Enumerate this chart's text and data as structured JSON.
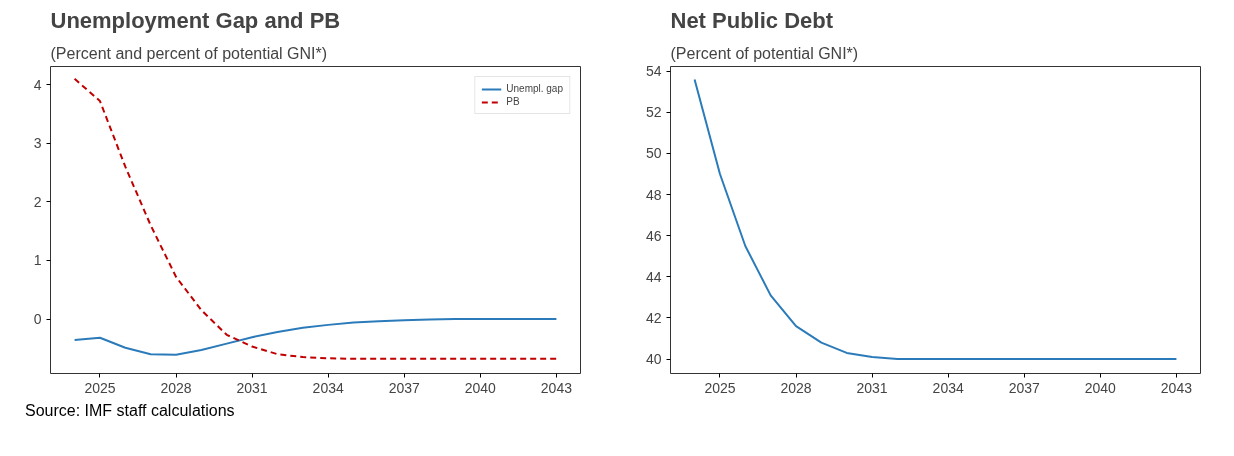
{
  "chart_data": [
    {
      "type": "line",
      "title": "Unemployment Gap and PB",
      "subtitle": "(Percent and percent of potential GNI*)",
      "x": [
        2024,
        2025,
        2026,
        2027,
        2028,
        2029,
        2030,
        2031,
        2032,
        2033,
        2034,
        2035,
        2036,
        2037,
        2038,
        2039,
        2040,
        2041,
        2042,
        2043
      ],
      "series": [
        {
          "name": "Unempl. gap",
          "color": "#2b7bba",
          "line_style": "solid",
          "values": [
            -0.36,
            -0.32,
            -0.49,
            -0.6,
            -0.61,
            -0.53,
            -0.42,
            -0.31,
            -0.22,
            -0.15,
            -0.1,
            -0.06,
            -0.04,
            -0.02,
            -0.01,
            0,
            0,
            0,
            0,
            0
          ]
        },
        {
          "name": "PB",
          "color": "#c00000",
          "line_style": "dashed",
          "values": [
            4.1,
            3.72,
            2.6,
            1.6,
            0.72,
            0.15,
            -0.27,
            -0.47,
            -0.6,
            -0.65,
            -0.67,
            -0.68,
            -0.68,
            -0.68,
            -0.68,
            -0.68,
            -0.68,
            -0.68,
            -0.68,
            -0.68
          ]
        }
      ],
      "xlim": [
        2023.05,
        2043.95
      ],
      "xticks": [
        2025,
        2028,
        2031,
        2034,
        2037,
        2040,
        2043
      ],
      "ylim": [
        -0.93,
        4.31
      ],
      "yticks": [
        0,
        1,
        2,
        3,
        4
      ],
      "grid": false,
      "legend": "top right",
      "annotations": [
        "Source: IMF staff calculations"
      ]
    },
    {
      "type": "line",
      "title": "Net Public Debt",
      "subtitle": "(Percent of potential GNI*)",
      "x": [
        2024,
        2025,
        2026,
        2027,
        2028,
        2029,
        2030,
        2031,
        2032,
        2033,
        2034,
        2035,
        2036,
        2037,
        2038,
        2039,
        2040,
        2041,
        2042,
        2043
      ],
      "series": [
        {
          "color": "#2b7bba",
          "values": [
            53.6,
            49.0,
            45.5,
            43.1,
            41.6,
            40.8,
            40.3,
            40.1,
            40.0,
            40.0,
            40.0,
            40.0,
            40.0,
            40.0,
            40.0,
            40.0,
            40.0,
            40.0,
            40.0,
            40.0
          ]
        }
      ],
      "xlim": [
        2023.05,
        2043.95
      ],
      "xticks": [
        2025,
        2028,
        2031,
        2034,
        2037,
        2040,
        2043
      ],
      "ylim": [
        39.3,
        54.23
      ],
      "yticks": [
        40,
        42,
        44,
        46,
        48,
        50,
        52,
        54
      ],
      "grid": false,
      "legend": false
    }
  ]
}
